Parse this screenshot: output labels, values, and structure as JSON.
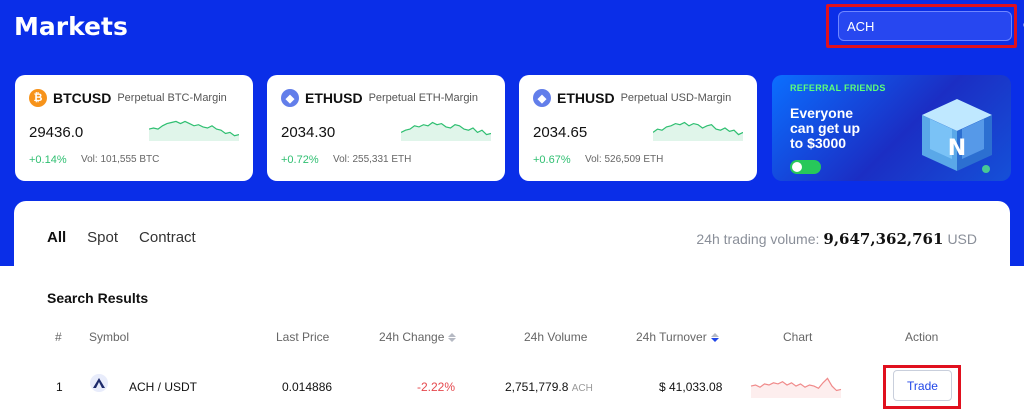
{
  "header": {
    "title": "Markets"
  },
  "search": {
    "value": "ACH"
  },
  "tickers": [
    {
      "symbol": "BTCUSD",
      "type": "Perpetual BTC-Margin",
      "price": "29436.0",
      "change": "+0.14%",
      "volume": "Vol: 101,555 BTC",
      "icon": "btc-icon",
      "spark": [
        0.55,
        0.5,
        0.55,
        0.4,
        0.3,
        0.25,
        0.2,
        0.3,
        0.2,
        0.3,
        0.4,
        0.35,
        0.45,
        0.5,
        0.4,
        0.55,
        0.6,
        0.75,
        0.7,
        0.85,
        0.8
      ]
    },
    {
      "symbol": "ETHUSD",
      "type": "Perpetual ETH-Margin",
      "price": "2034.30",
      "change": "+0.72%",
      "volume": "Vol: 255,331 ETH",
      "icon": "eth-icon",
      "spark": [
        0.7,
        0.6,
        0.55,
        0.4,
        0.45,
        0.35,
        0.4,
        0.25,
        0.35,
        0.3,
        0.45,
        0.5,
        0.35,
        0.4,
        0.55,
        0.6,
        0.5,
        0.7,
        0.6,
        0.8,
        0.75
      ]
    },
    {
      "symbol": "ETHUSD",
      "type": "Perpetual USD-Margin",
      "price": "2034.65",
      "change": "+0.67%",
      "volume": "Vol: 526,509 ETH",
      "icon": "eth-icon",
      "spark": [
        0.7,
        0.55,
        0.6,
        0.45,
        0.4,
        0.3,
        0.35,
        0.25,
        0.4,
        0.3,
        0.35,
        0.5,
        0.4,
        0.35,
        0.55,
        0.6,
        0.5,
        0.65,
        0.6,
        0.8,
        0.7
      ]
    }
  ],
  "banner": {
    "tag": "REFERRAL FRIENDS",
    "message": "Everyone\ncan get up\nto $3000"
  },
  "tabs": [
    "All",
    "Spot",
    "Contract"
  ],
  "volume": {
    "label": "24h trading volume:",
    "value": "9,647,362,761",
    "unit": "USD"
  },
  "results": {
    "title": "Search Results",
    "columns": [
      "#",
      "Symbol",
      "Last Price",
      "24h Change",
      "24h Volume",
      "24h Turnover",
      "Chart",
      "Action"
    ],
    "rows": [
      {
        "index": "1",
        "pair": "ACH / USDT",
        "last_price": "0.014886",
        "change": "-2.22%",
        "volume": "2,751,779.8",
        "volume_unit": "ACH",
        "turnover": "$ 41,033.08",
        "action": "Trade",
        "spark": [
          0.55,
          0.5,
          0.6,
          0.45,
          0.5,
          0.4,
          0.45,
          0.35,
          0.5,
          0.4,
          0.55,
          0.45,
          0.6,
          0.5,
          0.55,
          0.65,
          0.4,
          0.2,
          0.55,
          0.75,
          0.7
        ]
      }
    ]
  }
}
